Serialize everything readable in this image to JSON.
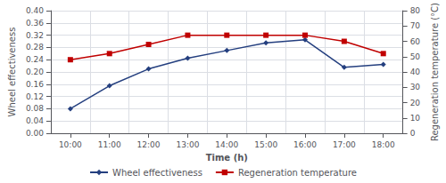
{
  "chart_data": {
    "type": "line",
    "xlabel": "Time (h)",
    "ylabel": "Wheel effectiveness",
    "y2label": "Regeneration temperature (°C)",
    "categories": [
      "10:00",
      "11:00",
      "12:00",
      "13:00",
      "14:00",
      "15:00",
      "16:00",
      "17:00",
      "18:00"
    ],
    "series": [
      {
        "name": "Wheel effectiveness",
        "color": "#243F7F",
        "marker": "diamond",
        "values": [
          0.08,
          0.155,
          0.21,
          0.245,
          0.27,
          0.295,
          0.305,
          0.215,
          0.225
        ]
      },
      {
        "name": "Regeneration temperature",
        "color": "#C00000",
        "marker": "square",
        "axis": "y2",
        "values": [
          48,
          52,
          58,
          64,
          64,
          64,
          64,
          60,
          52
        ]
      }
    ],
    "ylim": [
      0,
      0.4
    ],
    "yticks": [
      {
        "value": 0,
        "label": "0.00"
      },
      {
        "value": 0.04,
        "label": "0.04"
      },
      {
        "value": 0.08,
        "label": "0.08"
      },
      {
        "value": 0.12,
        "label": "0.12"
      },
      {
        "value": 0.16,
        "label": "0.16"
      },
      {
        "value": 0.2,
        "label": "0.20"
      },
      {
        "value": 0.24,
        "label": "0.24"
      },
      {
        "value": 0.28,
        "label": "0.28"
      },
      {
        "value": 0.32,
        "label": "0.32"
      },
      {
        "value": 0.36,
        "label": "0.36"
      },
      {
        "value": 0.4,
        "label": "0.40"
      }
    ],
    "y2lim": [
      0,
      80
    ],
    "y2ticks": [
      0,
      10,
      20,
      30,
      40,
      50,
      60,
      70,
      80
    ],
    "grid": true,
    "legend": "bottom"
  }
}
